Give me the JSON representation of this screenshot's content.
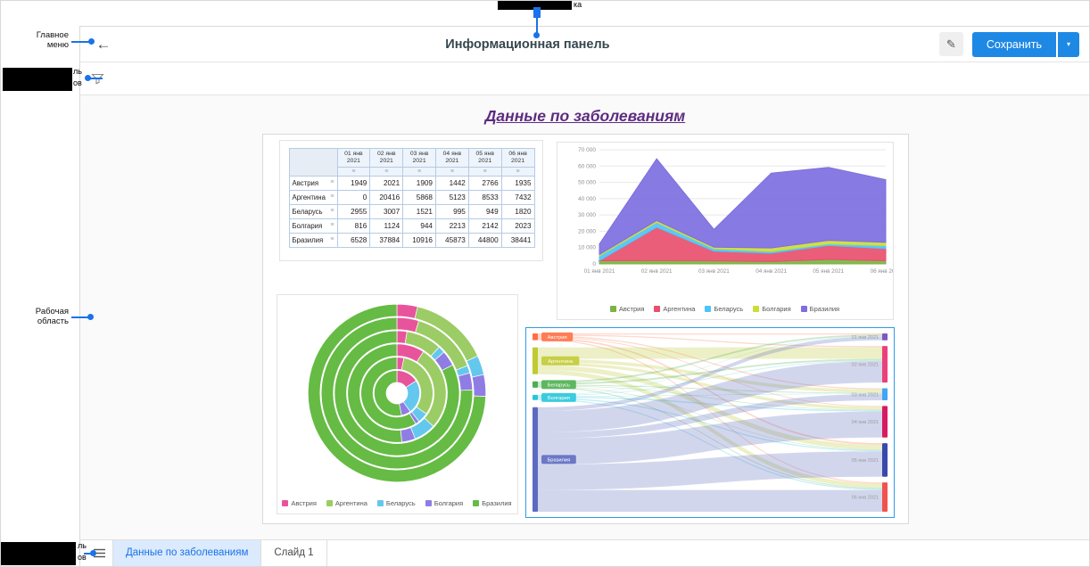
{
  "app": {
    "toolbar": {
      "title": "Информационная панель",
      "save_label": "Сохранить"
    },
    "slide_bar": {
      "tabs": [
        {
          "label": "Данные по заболеваниям",
          "active": true
        },
        {
          "label": "Слайд 1",
          "active": false
        }
      ]
    }
  },
  "dashboard": {
    "title": "Данные по заболеваниям"
  },
  "annotations": {
    "accent": "#1a73e8",
    "top_callout": {
      "fragment": "ка"
    },
    "main_menu": {
      "lines": [
        "Главное",
        "меню"
      ]
    },
    "filter_panel": {
      "fragments": [
        "ль",
        "ов"
      ]
    },
    "work_area": {
      "lines": [
        "Рабочая",
        "область"
      ]
    },
    "slides_panel": {
      "fragments": [
        "ль",
        "ов"
      ]
    }
  },
  "chart_data": [
    {
      "type": "table",
      "columns": [
        "01 янв 2021",
        "02 янв 2021",
        "03 янв 2021",
        "04 янв 2021",
        "05 янв 2021",
        "06 янв 2021"
      ],
      "rows": [
        {
          "name": "Австрия",
          "values": [
            1949,
            2021,
            1909,
            1442,
            2766,
            1935
          ]
        },
        {
          "name": "Аргентина",
          "values": [
            0,
            20416,
            5868,
            5123,
            8533,
            7432
          ]
        },
        {
          "name": "Беларусь",
          "values": [
            2955,
            3007,
            1521,
            995,
            949,
            1820
          ]
        },
        {
          "name": "Болгария",
          "values": [
            816,
            1124,
            944,
            2213,
            2142,
            2023
          ]
        },
        {
          "name": "Бразилия",
          "values": [
            6528,
            37884,
            10916,
            45873,
            44800,
            38441
          ]
        }
      ]
    },
    {
      "type": "area",
      "stacked": true,
      "x": [
        "01 янв 2021",
        "02 янв 2021",
        "03 янв 2021",
        "04 янв 2021",
        "05 янв 2021",
        "06 янв 2021"
      ],
      "series": [
        {
          "name": "Австрия",
          "color": "#7cb342",
          "values": [
            1949,
            2021,
            1909,
            1442,
            2766,
            1935
          ]
        },
        {
          "name": "Аргентина",
          "color": "#e8506e",
          "values": [
            0,
            20416,
            5868,
            5123,
            8533,
            7432
          ]
        },
        {
          "name": "Беларусь",
          "color": "#4fc3f7",
          "values": [
            2955,
            3007,
            1521,
            995,
            949,
            1820
          ]
        },
        {
          "name": "Болгария",
          "color": "#cddc39",
          "values": [
            816,
            1124,
            944,
            2213,
            2142,
            2023
          ]
        },
        {
          "name": "Бразилия",
          "color": "#7d6fe0",
          "values": [
            6528,
            37884,
            10916,
            45873,
            44800,
            38441
          ]
        }
      ],
      "ylim": [
        0,
        70000
      ],
      "yticks": [
        "0",
        "10 000",
        "20 000",
        "30 000",
        "40 000",
        "50 000",
        "60 000",
        "70 000"
      ],
      "grid": true,
      "legend_position": "bottom"
    },
    {
      "type": "sunburst",
      "rings": [
        "01 янв 2021",
        "02 янв 2021",
        "03 янв 2021",
        "04 янв 2021",
        "05 янв 2021",
        "06 янв 2021"
      ],
      "categories": [
        "Австрия",
        "Аргентина",
        "Беларусь",
        "Болгария",
        "Бразилия"
      ],
      "colors": [
        "#e8549c",
        "#9ccc65",
        "#64c7ee",
        "#8f7de4",
        "#66bb44"
      ],
      "values_by_ring": [
        [
          1949,
          0,
          2955,
          816,
          6528
        ],
        [
          2021,
          20416,
          3007,
          1124,
          37884
        ],
        [
          1909,
          5868,
          1521,
          944,
          10916
        ],
        [
          1442,
          5123,
          995,
          2213,
          45873
        ],
        [
          2766,
          8533,
          949,
          2142,
          44800
        ],
        [
          1935,
          7432,
          1820,
          2023,
          38441
        ]
      ],
      "legend_position": "bottom"
    },
    {
      "type": "sankey",
      "selected": true,
      "left_nodes": [
        {
          "name": "Австрия",
          "color": "#ff7043",
          "total": 12022
        },
        {
          "name": "Аргентина",
          "color": "#c0ca33",
          "total": 47372
        },
        {
          "name": "Беларусь",
          "color": "#4caf50",
          "total": 11247
        },
        {
          "name": "Болгария",
          "color": "#26c6da",
          "total": 9262
        },
        {
          "name": "Бразилия",
          "color": "#5c6bc0",
          "total": 184442
        }
      ],
      "right_nodes": [
        {
          "name": "01 янв 2021",
          "color": "#7e57c2",
          "total": 12248
        },
        {
          "name": "02 янв 2021",
          "color": "#ec407a",
          "total": 64452
        },
        {
          "name": "03 янв 2021",
          "color": "#42a5f5",
          "total": 21158
        },
        {
          "name": "04 янв 2021",
          "color": "#d81b60",
          "total": 55646
        },
        {
          "name": "05 янв 2021",
          "color": "#3949ab",
          "total": 59190
        },
        {
          "name": "06 янв 2021",
          "color": "#ef5350",
          "total": 51651
        }
      ],
      "flows_by_left": [
        [
          1949,
          2021,
          1909,
          1442,
          2766,
          1935
        ],
        [
          0,
          20416,
          5868,
          5123,
          8533,
          7432
        ],
        [
          2955,
          3007,
          1521,
          995,
          949,
          1820
        ],
        [
          816,
          1124,
          944,
          2213,
          2142,
          2023
        ],
        [
          6528,
          37884,
          10916,
          45873,
          44800,
          38441
        ]
      ]
    }
  ]
}
